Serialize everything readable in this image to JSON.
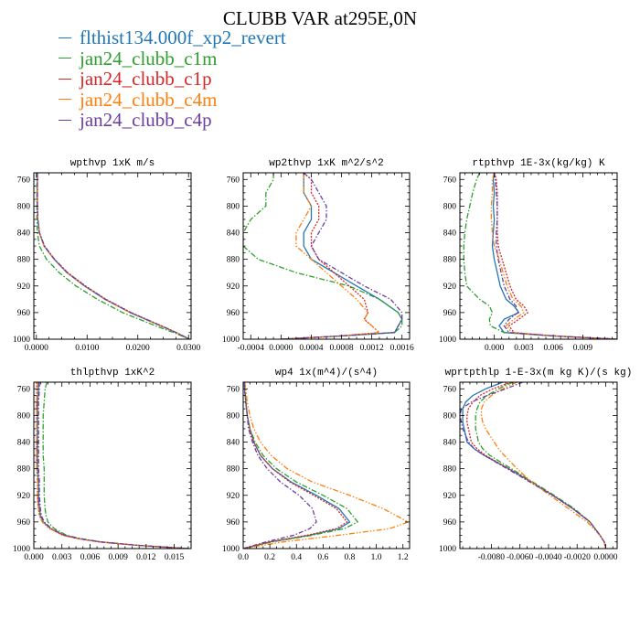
{
  "title": "CLUBB VAR at295E,0N",
  "legend": [
    {
      "name": "flthist134.000f_xp2_revert",
      "color": "#2277b4"
    },
    {
      "name": "jan24_clubb_c1m",
      "color": "#2ca02c"
    },
    {
      "name": "jan24_clubb_c1p",
      "color": "#d62728"
    },
    {
      "name": "jan24_clubb_c4m",
      "color": "#ff7f0e"
    },
    {
      "name": "jan24_clubb_c4p",
      "color": "#6b3fa0"
    }
  ],
  "chart_data": [
    {
      "type": "line",
      "title": "wpthvp  1xK m/s",
      "xlim": [
        -0.0005,
        0.0305
      ],
      "ylim": [
        1000,
        750
      ],
      "grid": false,
      "xticks": [
        0.0,
        0.01,
        0.02,
        0.03
      ],
      "xticklabels": [
        "0.0000",
        "0.0100",
        "0.0200",
        "0.0300"
      ],
      "yticks": [
        760,
        800,
        840,
        880,
        920,
        960,
        1000
      ],
      "y": [
        750,
        760,
        780,
        800,
        820,
        840,
        860,
        880,
        900,
        920,
        940,
        960,
        980,
        990,
        1000
      ],
      "series": [
        {
          "name": "flthist134.000f_xp2_revert",
          "values": [
            0.0002,
            0.0002,
            0.0002,
            0.0002,
            0.0003,
            0.0006,
            0.0015,
            0.0035,
            0.006,
            0.0095,
            0.0135,
            0.0185,
            0.0245,
            0.0275,
            0.0302
          ]
        },
        {
          "name": "jan24_clubb_c1m",
          "values": [
            0.0001,
            0.0001,
            0.0001,
            0.0001,
            0.0001,
            0.0002,
            0.0006,
            0.002,
            0.0045,
            0.0078,
            0.012,
            0.017,
            0.0235,
            0.027,
            0.0302
          ]
        },
        {
          "name": "jan24_clubb_c1p",
          "values": [
            0.0002,
            0.0002,
            0.0002,
            0.0002,
            0.0003,
            0.0006,
            0.0016,
            0.0036,
            0.0062,
            0.0097,
            0.0137,
            0.0187,
            0.0247,
            0.0276,
            0.0302
          ]
        },
        {
          "name": "jan24_clubb_c4m",
          "values": [
            0.0002,
            0.0002,
            0.0002,
            0.0002,
            0.0003,
            0.0006,
            0.0015,
            0.0035,
            0.006,
            0.0095,
            0.0135,
            0.0185,
            0.0245,
            0.0275,
            0.0302
          ]
        },
        {
          "name": "jan24_clubb_c4p",
          "values": [
            0.0002,
            0.0002,
            0.0002,
            0.0002,
            0.0003,
            0.0006,
            0.0016,
            0.0036,
            0.0061,
            0.0096,
            0.0136,
            0.0186,
            0.0246,
            0.0276,
            0.0302
          ]
        }
      ]
    },
    {
      "type": "line",
      "title": "wp2thvp  1xK m^2/s^2",
      "xlim": [
        -0.0005,
        0.0017
      ],
      "ylim": [
        1000,
        750
      ],
      "grid": false,
      "xticks": [
        -0.0004,
        0.0,
        0.0004,
        0.0008,
        0.0012,
        0.0016
      ],
      "xticklabels": [
        "-0.0004",
        "0.0000",
        "0.0004",
        "0.0008",
        "0.0012",
        "0.0016"
      ],
      "yticks": [
        760,
        800,
        840,
        880,
        920,
        960,
        1000
      ],
      "y": [
        750,
        760,
        780,
        800,
        820,
        840,
        860,
        880,
        900,
        920,
        940,
        960,
        970,
        980,
        990,
        995,
        1000
      ],
      "series": [
        {
          "name": "flthist134.000f_xp2_revert",
          "values": [
            0.0003,
            0.0003,
            0.0003,
            0.0004,
            0.0004,
            0.0003,
            0.0003,
            0.0004,
            0.0007,
            0.001,
            0.0013,
            0.00155,
            0.0016,
            0.00155,
            0.0015,
            0.0008,
            0.0
          ]
        },
        {
          "name": "jan24_clubb_c1m",
          "values": [
            -0.0001,
            -0.0001,
            -0.0002,
            -0.0002,
            -0.0004,
            -0.0005,
            -0.0005,
            -0.0003,
            0.0002,
            0.0009,
            0.0013,
            0.00155,
            0.0016,
            0.0016,
            0.0015,
            0.0008,
            0.0
          ]
        },
        {
          "name": "jan24_clubb_c1p",
          "values": [
            0.0003,
            0.0004,
            0.0004,
            0.0005,
            0.0005,
            0.0004,
            0.0004,
            0.0005,
            0.0007,
            0.0009,
            0.0011,
            0.00115,
            0.0011,
            0.0012,
            0.0013,
            0.0008,
            0.0
          ]
        },
        {
          "name": "jan24_clubb_c4m",
          "values": [
            0.0003,
            0.0003,
            0.0003,
            0.0004,
            0.0003,
            0.0002,
            0.0002,
            0.0004,
            0.0006,
            0.0008,
            0.001,
            0.00115,
            0.0011,
            0.0012,
            0.0013,
            0.0008,
            0.0
          ]
        },
        {
          "name": "jan24_clubb_c4p",
          "values": [
            0.0003,
            0.0004,
            0.0005,
            0.0006,
            0.0006,
            0.0005,
            0.0004,
            0.0005,
            0.0008,
            0.0011,
            0.00145,
            0.0016,
            0.0016,
            0.00155,
            0.0015,
            0.0008,
            0.0
          ]
        }
      ]
    },
    {
      "type": "line",
      "title": "rtpthvp  1E-3x(kg/kg) K",
      "xlim": [
        -0.0035,
        0.0125
      ],
      "ylim": [
        1000,
        750
      ],
      "grid": false,
      "xticks": [
        0.0,
        0.003,
        0.006,
        0.009
      ],
      "xticklabels": [
        "0.000",
        "0.003",
        "0.006",
        "0.009"
      ],
      "yticks": [
        760,
        800,
        840,
        880,
        920,
        960,
        1000
      ],
      "y": [
        750,
        760,
        780,
        800,
        820,
        840,
        860,
        880,
        900,
        920,
        940,
        950,
        960,
        970,
        980,
        990,
        995,
        1000
      ],
      "series": [
        {
          "name": "flthist134.000f_xp2_revert",
          "values": [
            0.0,
            -0.0001,
            0.0,
            -0.0001,
            0.0,
            -0.0001,
            -0.0002,
            0.0,
            0.0003,
            0.0006,
            0.0012,
            0.002,
            0.0025,
            0.001,
            0.0005,
            0.001,
            0.006,
            0.0125
          ]
        },
        {
          "name": "jan24_clubb_c1m",
          "values": [
            -0.0015,
            -0.0018,
            -0.0022,
            -0.0025,
            -0.0028,
            -0.003,
            -0.0031,
            -0.0031,
            -0.003,
            -0.0028,
            -0.0015,
            -0.0005,
            -0.0002,
            -0.0005,
            -0.0004,
            0.001,
            0.006,
            0.0125
          ]
        },
        {
          "name": "jan24_clubb_c1p",
          "values": [
            0.0,
            0.0002,
            0.0003,
            0.0003,
            0.0003,
            0.0003,
            0.0004,
            0.0008,
            0.0012,
            0.0016,
            0.0022,
            0.003,
            0.0034,
            0.0025,
            0.0015,
            0.002,
            0.006,
            0.0125
          ]
        },
        {
          "name": "jan24_clubb_c4m",
          "values": [
            0.0,
            -0.0002,
            -0.0002,
            -0.0003,
            -0.0003,
            -0.0002,
            0.0,
            0.0005,
            0.0009,
            0.0013,
            0.0019,
            0.0027,
            0.003,
            0.002,
            0.0012,
            0.0018,
            0.006,
            0.0125
          ]
        },
        {
          "name": "jan24_clubb_c4p",
          "values": [
            0.0,
            0.0001,
            0.0002,
            0.0003,
            0.0003,
            0.0002,
            0.0002,
            0.0004,
            0.0007,
            0.001,
            0.0016,
            0.0022,
            0.0024,
            0.0015,
            0.001,
            0.0015,
            0.006,
            0.0125
          ]
        }
      ]
    },
    {
      "type": "line",
      "title": "thlpthvp  1xK^2",
      "xlim": [
        0.0,
        0.0168
      ],
      "ylim": [
        1000,
        750
      ],
      "grid": false,
      "xticks": [
        0.0,
        0.003,
        0.006,
        0.009,
        0.012,
        0.015
      ],
      "xticklabels": [
        "0.000",
        "0.003",
        "0.006",
        "0.009",
        "0.012",
        "0.015"
      ],
      "yticks": [
        760,
        800,
        840,
        880,
        920,
        960,
        1000
      ],
      "y": [
        750,
        760,
        780,
        800,
        820,
        840,
        860,
        880,
        900,
        920,
        940,
        950,
        960,
        970,
        980,
        985,
        990,
        995,
        1000
      ],
      "series": [
        {
          "name": "flthist134.000f_xp2_revert",
          "values": [
            0.0005,
            0.0005,
            0.0004,
            0.0004,
            0.0004,
            0.0004,
            0.0004,
            0.0004,
            0.0005,
            0.0005,
            0.0006,
            0.0007,
            0.001,
            0.0018,
            0.0032,
            0.0048,
            0.007,
            0.011,
            0.0165
          ]
        },
        {
          "name": "jan24_clubb_c1m",
          "values": [
            0.0014,
            0.0012,
            0.0011,
            0.001,
            0.001,
            0.001,
            0.001,
            0.0011,
            0.0011,
            0.0011,
            0.0012,
            0.0013,
            0.0015,
            0.0022,
            0.0035,
            0.005,
            0.0072,
            0.011,
            0.0165
          ]
        },
        {
          "name": "jan24_clubb_c1p",
          "values": [
            0.0003,
            0.0003,
            0.0003,
            0.0003,
            0.0003,
            0.0003,
            0.0003,
            0.0003,
            0.0004,
            0.0004,
            0.0005,
            0.0006,
            0.0009,
            0.0017,
            0.0031,
            0.0047,
            0.007,
            0.011,
            0.0165
          ]
        },
        {
          "name": "jan24_clubb_c4m",
          "values": [
            0.0004,
            0.0004,
            0.0003,
            0.0003,
            0.0003,
            0.0003,
            0.0003,
            0.0003,
            0.0004,
            0.0004,
            0.0005,
            0.0006,
            0.0009,
            0.0017,
            0.0031,
            0.0047,
            0.007,
            0.011,
            0.0165
          ]
        },
        {
          "name": "jan24_clubb_c4p",
          "values": [
            0.0006,
            0.0006,
            0.0005,
            0.0005,
            0.0005,
            0.0005,
            0.0005,
            0.0005,
            0.0006,
            0.0006,
            0.0007,
            0.0008,
            0.0011,
            0.0019,
            0.0033,
            0.0049,
            0.0071,
            0.011,
            0.0165
          ]
        }
      ]
    },
    {
      "type": "line",
      "title": "wp4  1x(m^4)/(s^4)",
      "xlim": [
        0.0,
        1.25
      ],
      "ylim": [
        1000,
        750
      ],
      "grid": false,
      "xticks": [
        0.0,
        0.2,
        0.4,
        0.6,
        0.8,
        1.0,
        1.2
      ],
      "xticklabels": [
        "0.0",
        "0.2",
        "0.4",
        "0.6",
        "0.8",
        "1.0",
        "1.2"
      ],
      "yticks": [
        760,
        800,
        840,
        880,
        920,
        960,
        1000
      ],
      "y": [
        750,
        760,
        780,
        800,
        820,
        840,
        860,
        880,
        900,
        920,
        940,
        960,
        970,
        980,
        990,
        1000
      ],
      "series": [
        {
          "name": "flthist134.000f_xp2_revert",
          "values": [
            0.01,
            0.01,
            0.02,
            0.03,
            0.05,
            0.08,
            0.13,
            0.22,
            0.36,
            0.55,
            0.72,
            0.8,
            0.72,
            0.5,
            0.2,
            0.0
          ]
        },
        {
          "name": "jan24_clubb_c1m",
          "values": [
            0.01,
            0.01,
            0.02,
            0.03,
            0.05,
            0.09,
            0.15,
            0.25,
            0.4,
            0.6,
            0.78,
            0.86,
            0.76,
            0.52,
            0.22,
            0.0
          ]
        },
        {
          "name": "jan24_clubb_c1p",
          "values": [
            0.01,
            0.01,
            0.02,
            0.03,
            0.05,
            0.08,
            0.13,
            0.22,
            0.35,
            0.53,
            0.7,
            0.78,
            0.7,
            0.48,
            0.2,
            0.0
          ]
        },
        {
          "name": "jan24_clubb_c4m",
          "values": [
            0.01,
            0.02,
            0.03,
            0.05,
            0.08,
            0.13,
            0.21,
            0.33,
            0.52,
            0.8,
            1.05,
            1.24,
            1.1,
            0.72,
            0.3,
            0.0
          ]
        },
        {
          "name": "jan24_clubb_c4p",
          "values": [
            0.01,
            0.01,
            0.02,
            0.03,
            0.04,
            0.07,
            0.11,
            0.18,
            0.28,
            0.42,
            0.52,
            0.55,
            0.5,
            0.38,
            0.17,
            0.0
          ]
        }
      ]
    },
    {
      "type": "line",
      "title": "wprtpthlp  1-E-3x(m kg K)/(s kg)",
      "xlim": [
        -0.0102,
        0.0008
      ],
      "ylim": [
        1000,
        750
      ],
      "grid": false,
      "xticks": [
        -0.008,
        -0.006,
        -0.004,
        -0.002,
        0.0
      ],
      "xticklabels": [
        "-0.0080",
        "-0.0060",
        "-0.0040",
        "-0.0020",
        "0.0000"
      ],
      "yticks": [
        760,
        800,
        840,
        880,
        920,
        960,
        1000
      ],
      "y": [
        750,
        760,
        770,
        780,
        790,
        800,
        810,
        820,
        830,
        840,
        850,
        860,
        880,
        900,
        920,
        940,
        960,
        980,
        990,
        1000
      ],
      "series": [
        {
          "name": "flthist134.000f_xp2_revert",
          "values": [
            -0.0072,
            -0.0084,
            -0.0093,
            -0.0098,
            -0.01,
            -0.01,
            -0.01,
            -0.0099,
            -0.0098,
            -0.0097,
            -0.0092,
            -0.0085,
            -0.0068,
            -0.0052,
            -0.0037,
            -0.0023,
            -0.0011,
            -0.0004,
            -0.0001,
            0.0
          ]
        },
        {
          "name": "jan24_clubb_c1m",
          "values": [
            -0.0065,
            -0.0075,
            -0.0083,
            -0.0088,
            -0.009,
            -0.0091,
            -0.0091,
            -0.0091,
            -0.009,
            -0.0089,
            -0.0086,
            -0.0081,
            -0.0066,
            -0.0051,
            -0.0036,
            -0.0022,
            -0.0011,
            -0.0004,
            -0.0001,
            0.0
          ]
        },
        {
          "name": "jan24_clubb_c1p",
          "values": [
            -0.0066,
            -0.0079,
            -0.0088,
            -0.0093,
            -0.0096,
            -0.0097,
            -0.0097,
            -0.0096,
            -0.0095,
            -0.0094,
            -0.009,
            -0.0084,
            -0.0068,
            -0.0052,
            -0.0037,
            -0.0023,
            -0.0011,
            -0.0004,
            -0.0001,
            0.0
          ]
        },
        {
          "name": "jan24_clubb_c4m",
          "values": [
            -0.0062,
            -0.0072,
            -0.008,
            -0.0085,
            -0.0087,
            -0.0087,
            -0.0086,
            -0.0084,
            -0.0081,
            -0.0078,
            -0.0075,
            -0.0071,
            -0.0062,
            -0.0052,
            -0.0039,
            -0.0026,
            -0.0013,
            -0.0004,
            -0.0001,
            0.0
          ]
        },
        {
          "name": "jan24_clubb_c4p",
          "values": [
            -0.0058,
            -0.007,
            -0.0083,
            -0.0094,
            -0.0101,
            -0.0102,
            -0.0101,
            -0.01,
            -0.0098,
            -0.0096,
            -0.0092,
            -0.0085,
            -0.0069,
            -0.0053,
            -0.0037,
            -0.0023,
            -0.0011,
            -0.0004,
            -0.0001,
            0.0
          ]
        }
      ]
    }
  ]
}
